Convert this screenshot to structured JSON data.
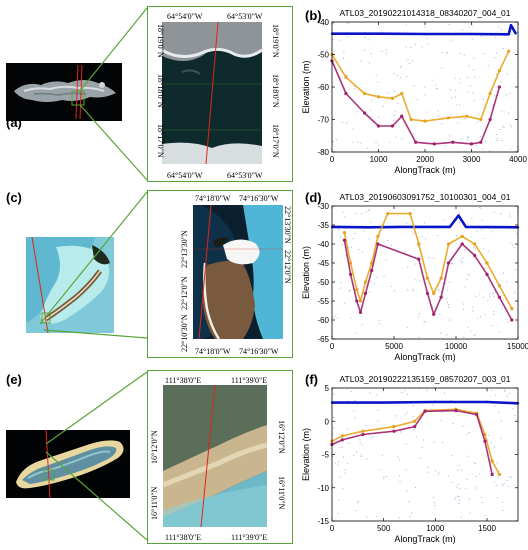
{
  "figure": {
    "panels": {
      "a": "(a)",
      "b": "(b)",
      "c": "(c)",
      "d": "(d)",
      "e": "(e)",
      "f": "(f)"
    },
    "map_a": {
      "lon_ticks": [
        "64°54'0\"W",
        "64°53'0\"W"
      ],
      "lat_ticks": [
        "18°19'0\"N",
        "18°18'0\"N",
        "18°17'0\"N"
      ]
    },
    "map_c": {
      "lon_ticks": [
        "74°18'0\"W",
        "74°16'30\"W"
      ],
      "lat_ticks": [
        "22°13'30\"N",
        "22°12'0\"N",
        "22°10'30\"N"
      ]
    },
    "map_e": {
      "lon_ticks": [
        "111°38'0\"E",
        "111°39'0\"E"
      ],
      "lat_ticks": [
        "16°12'0\"N",
        "16°11'0\"N"
      ]
    },
    "colors": {
      "frame_green": "#5aa33a",
      "track_red": "#e0261c",
      "surface_blue": "#0a14c8",
      "photon_orange": "#e8a21a",
      "photon_purple": "#a0206a",
      "noise_blue": "#4a6cc8"
    }
  },
  "chart_data": [
    {
      "type": "scatter",
      "title": "ATL03_20190221014318_08340207_004_01",
      "xlabel": "AlongTrack (m)",
      "ylabel": "Elevation (m)",
      "xlim": [
        0,
        4000
      ],
      "ylim": [
        -80,
        -40
      ],
      "xticks": [
        "0",
        "1000",
        "2000",
        "3000",
        "4000"
      ],
      "yticks": [
        "-40",
        "-50",
        "-60",
        "-70",
        "-80"
      ],
      "series": [
        {
          "values": [
            [
              0,
              -43.6
            ],
            [
              1000,
              -43.6
            ],
            [
              2000,
              -43.7
            ],
            [
              3000,
              -43.7
            ],
            [
              3800,
              -43.8
            ],
            [
              3850,
              -41
            ],
            [
              3950,
              -43.5
            ]
          ]
        },
        {
          "values": [
            [
              0,
              -50
            ],
            [
              300,
              -57
            ],
            [
              700,
              -62
            ],
            [
              1000,
              -63
            ],
            [
              1300,
              -63.5
            ],
            [
              1500,
              -62
            ],
            [
              1700,
              -70
            ],
            [
              2000,
              -70.5
            ],
            [
              2500,
              -69.5
            ],
            [
              2900,
              -69
            ],
            [
              3200,
              -70
            ],
            [
              3400,
              -62
            ],
            [
              3600,
              -55
            ],
            [
              3800,
              -49
            ]
          ]
        },
        {
          "values": [
            [
              0,
              -52
            ],
            [
              300,
              -62
            ],
            [
              700,
              -68
            ],
            [
              1000,
              -72
            ],
            [
              1300,
              -72
            ],
            [
              1500,
              -69
            ],
            [
              1800,
              -77
            ],
            [
              2200,
              -77.5
            ],
            [
              2600,
              -77
            ],
            [
              3000,
              -77.5
            ],
            [
              3200,
              -77
            ],
            [
              3400,
              -70
            ],
            [
              3600,
              -60
            ]
          ]
        }
      ]
    },
    {
      "type": "scatter",
      "title": "ATL03_20190603091752_10100301_004_01",
      "xlabel": "AlongTrack (m)",
      "ylabel": "Elevation (m)",
      "xlim": [
        0,
        15000
      ],
      "ylim": [
        -65,
        -30
      ],
      "xticks": [
        "0",
        "5000",
        "10000",
        "15000"
      ],
      "yticks": [
        "-30",
        "-35",
        "-40",
        "-45",
        "-50",
        "-55",
        "-60",
        "-65"
      ],
      "series": [
        {
          "values": [
            [
              0,
              -35.5
            ],
            [
              3000,
              -35.6
            ],
            [
              5500,
              -35.5
            ],
            [
              9500,
              -35.5
            ],
            [
              10200,
              -32.5
            ],
            [
              10800,
              -35.5
            ],
            [
              15000,
              -35.6
            ]
          ]
        },
        {
          "values": [
            [
              1000,
              -37
            ],
            [
              1500,
              -45
            ],
            [
              2000,
              -52
            ],
            [
              2300,
              -55
            ],
            [
              2700,
              -50
            ],
            [
              3200,
              -45
            ],
            [
              3700,
              -38
            ],
            [
              4500,
              -32
            ],
            [
              6300,
              -32
            ],
            [
              7000,
              -40
            ],
            [
              7700,
              -49
            ],
            [
              8200,
              -53
            ],
            [
              8800,
              -49
            ],
            [
              9400,
              -40
            ],
            [
              10500,
              -38
            ],
            [
              11500,
              -40
            ],
            [
              12500,
              -45
            ],
            [
              13500,
              -51
            ],
            [
              14500,
              -57
            ]
          ]
        },
        {
          "values": [
            [
              1000,
              -39
            ],
            [
              1500,
              -48
            ],
            [
              2000,
              -55
            ],
            [
              2300,
              -58
            ],
            [
              2700,
              -53
            ],
            [
              3200,
              -47
            ],
            [
              3700,
              -40
            ],
            [
              7000,
              -44
            ],
            [
              7700,
              -53
            ],
            [
              8200,
              -58.5
            ],
            [
              8800,
              -54
            ],
            [
              9400,
              -45
            ],
            [
              10500,
              -40
            ],
            [
              11500,
              -43
            ],
            [
              12500,
              -48
            ],
            [
              13500,
              -54
            ],
            [
              14500,
              -60
            ]
          ]
        }
      ]
    },
    {
      "type": "scatter",
      "title": "ATL03_20190222135159_08570207_003_01",
      "xlabel": "AlongTrack (m)",
      "ylabel": "Elevation (m)",
      "xlim": [
        0,
        1800
      ],
      "ylim": [
        -15,
        5
      ],
      "xticks": [
        "0",
        "500",
        "1000",
        "1500"
      ],
      "yticks": [
        "5",
        "0",
        "-5",
        "-10",
        "-15"
      ],
      "series": [
        {
          "values": [
            [
              0,
              2.8
            ],
            [
              500,
              2.8
            ],
            [
              1000,
              2.9
            ],
            [
              1500,
              2.9
            ],
            [
              1800,
              2.7
            ]
          ]
        },
        {
          "values": [
            [
              0,
              -3
            ],
            [
              100,
              -2.2
            ],
            [
              300,
              -1.5
            ],
            [
              600,
              -0.8
            ],
            [
              800,
              0
            ],
            [
              900,
              1.6
            ],
            [
              1200,
              1.8
            ],
            [
              1400,
              1.2
            ],
            [
              1480,
              -2
            ],
            [
              1550,
              -6
            ],
            [
              1620,
              -8
            ]
          ]
        },
        {
          "values": [
            [
              0,
              -3.5
            ],
            [
              100,
              -2.8
            ],
            [
              300,
              -2
            ],
            [
              600,
              -1.5
            ],
            [
              800,
              -0.8
            ],
            [
              900,
              1.5
            ],
            [
              1200,
              1.6
            ],
            [
              1400,
              1.0
            ],
            [
              1480,
              -3
            ],
            [
              1550,
              -8
            ]
          ]
        }
      ]
    }
  ]
}
